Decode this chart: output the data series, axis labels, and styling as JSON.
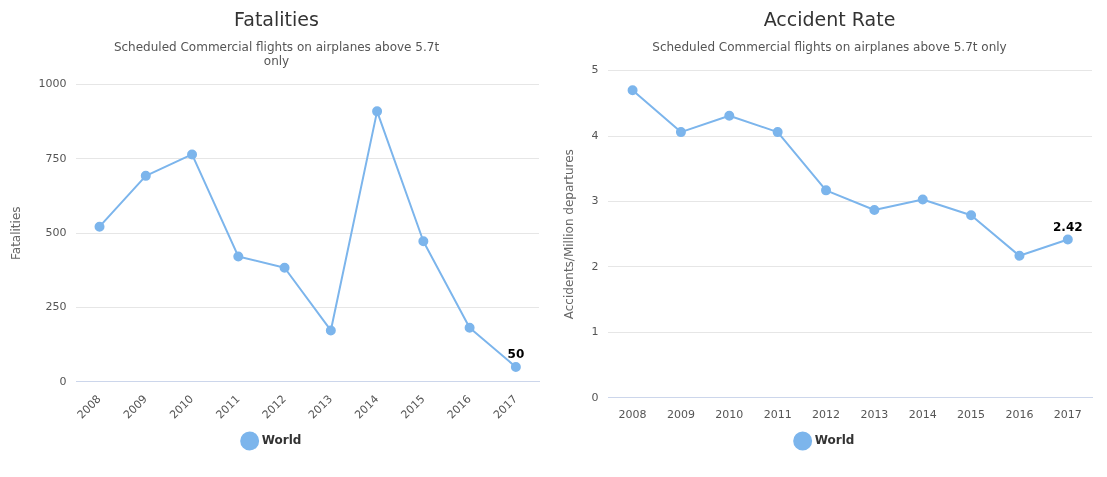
{
  "chart_data": [
    {
      "type": "line",
      "title": "Fatalities",
      "subtitle": "Scheduled Commercial flights on airplanes above 5.7t only",
      "ylabel": "Fatalities",
      "categories": [
        "2008",
        "2009",
        "2010",
        "2011",
        "2012",
        "2013",
        "2014",
        "2015",
        "2016",
        "2017"
      ],
      "series": [
        {
          "name": "World",
          "color": "#7cb5ec",
          "values": [
            522,
            693,
            765,
            422,
            384,
            173,
            910,
            473,
            182,
            50
          ],
          "value_labels": [
            null,
            null,
            null,
            null,
            null,
            null,
            null,
            null,
            null,
            "50"
          ]
        }
      ],
      "ylim": [
        0,
        1000
      ],
      "yticks": [
        0,
        250,
        500,
        750,
        1000
      ],
      "grid": "y",
      "legend": "bottom",
      "marker": "circle",
      "line_style": "solid"
    },
    {
      "type": "line",
      "title": "Accident Rate",
      "subtitle": "Scheduled Commercial flights on airplanes above 5.7t only",
      "ylabel": "Accidents/Million departures",
      "categories": [
        "2008",
        "2009",
        "2010",
        "2011",
        "2012",
        "2013",
        "2014",
        "2015",
        "2016",
        "2017"
      ],
      "series": [
        {
          "name": "World",
          "color": "#7cb5ec",
          "values": [
            4.7,
            4.06,
            4.31,
            4.06,
            3.17,
            2.87,
            3.03,
            2.79,
            2.17,
            2.42
          ],
          "value_labels": [
            null,
            null,
            null,
            null,
            null,
            null,
            null,
            null,
            null,
            "2.42"
          ]
        }
      ],
      "ylim": [
        0,
        5
      ],
      "yticks": [
        0,
        1,
        2,
        3,
        4,
        5
      ],
      "grid": "y",
      "legend": "bottom",
      "marker": "circle",
      "line_style": "solid"
    }
  ]
}
